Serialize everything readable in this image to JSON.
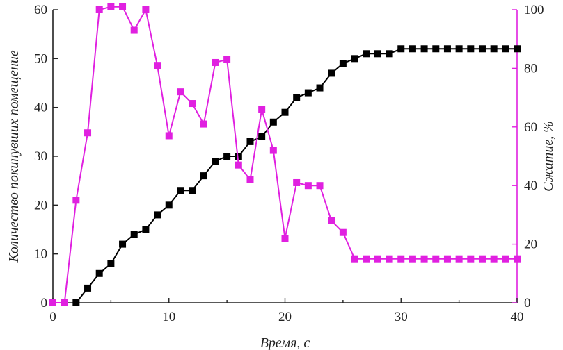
{
  "chart_data": {
    "type": "line",
    "title": "",
    "xlabel": "Время, с",
    "ylabel_left": "Количество покинувших помещение",
    "ylabel_right": "Сжатие, %",
    "xlim": [
      0,
      40
    ],
    "ylim_left": [
      0,
      60
    ],
    "ylim_right": [
      0,
      100
    ],
    "x_ticks": [
      0,
      10,
      20,
      30,
      40
    ],
    "y_left_ticks": [
      0,
      10,
      20,
      30,
      40,
      50,
      60
    ],
    "y_right_ticks": [
      0,
      20,
      40,
      60,
      80,
      100
    ],
    "grid": false,
    "legend": "none",
    "series": [
      {
        "axis": "left",
        "color": "#000000",
        "marker": "square",
        "x": [
          2,
          3,
          4,
          5,
          6,
          7,
          8,
          9,
          10,
          11,
          12,
          13,
          14,
          15,
          16,
          17,
          18,
          19,
          20,
          21,
          22,
          23,
          24,
          25,
          26,
          27,
          28,
          29,
          30,
          31,
          32,
          33,
          34,
          35,
          36,
          37,
          38,
          39,
          40
        ],
        "values": [
          0,
          3,
          6,
          8,
          12,
          14,
          15,
          18,
          20,
          23,
          23,
          26,
          29,
          30,
          30,
          33,
          34,
          37,
          39,
          42,
          43,
          44,
          47,
          49,
          50,
          51,
          51,
          51,
          52,
          52,
          52,
          52,
          52,
          52,
          52,
          52,
          52,
          52,
          52
        ]
      },
      {
        "axis": "right",
        "color": "#e020e0",
        "marker": "square",
        "x": [
          0,
          1,
          2,
          3,
          4,
          5,
          6,
          7,
          8,
          9,
          10,
          11,
          12,
          13,
          14,
          15,
          16,
          17,
          18,
          19,
          20,
          21,
          22,
          23,
          24,
          25,
          26,
          27,
          28,
          29,
          30,
          31,
          32,
          33,
          34,
          35,
          36,
          37,
          38,
          39,
          40
        ],
        "values": [
          0,
          0,
          35,
          58,
          100,
          101,
          101,
          93,
          100,
          81,
          57,
          72,
          68,
          61,
          82,
          83,
          47,
          42,
          66,
          52,
          22,
          41,
          40,
          40,
          28,
          24,
          15,
          15,
          15,
          15,
          15,
          15,
          15,
          15,
          15,
          15,
          15,
          15,
          15,
          15,
          15
        ]
      }
    ]
  }
}
